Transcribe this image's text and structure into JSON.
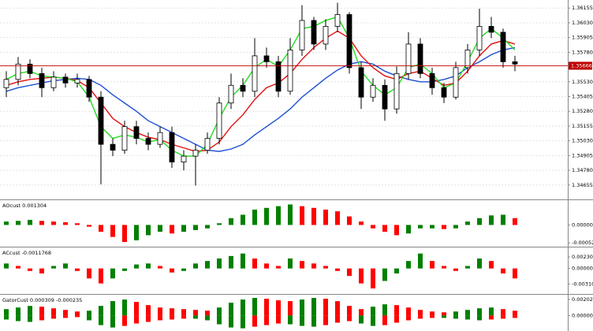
{
  "chart_data": [
    {
      "type": "candlestick",
      "open": [
        1.3548,
        1.3555,
        1.3568,
        1.356,
        1.3548,
        1.3557,
        1.3552,
        1.3555,
        1.354,
        1.35,
        1.3495,
        1.3515,
        1.3505,
        1.35,
        1.351,
        1.3485,
        1.349,
        1.3495,
        1.3505,
        1.3535,
        1.355,
        1.3545,
        1.3575,
        1.357,
        1.3545,
        1.358,
        1.3605,
        1.3585,
        1.36,
        1.361,
        1.3565,
        1.354,
        1.355,
        1.353,
        1.356,
        1.3585,
        1.356,
        1.3548,
        1.354,
        1.3565,
        1.358,
        1.36,
        1.3595,
        1.357
      ],
      "high": [
        1.3562,
        1.3574,
        1.3572,
        1.3565,
        1.3562,
        1.356,
        1.356,
        1.3558,
        1.3545,
        1.3505,
        1.352,
        1.352,
        1.351,
        1.3515,
        1.3515,
        1.3495,
        1.35,
        1.351,
        1.354,
        1.356,
        1.3556,
        1.359,
        1.3582,
        1.3575,
        1.359,
        1.3618,
        1.3608,
        1.3606,
        1.362,
        1.3612,
        1.357,
        1.3556,
        1.3555,
        1.3566,
        1.3595,
        1.359,
        1.3565,
        1.3552,
        1.357,
        1.3585,
        1.3615,
        1.3608,
        1.3598,
        1.3575
      ],
      "low": [
        1.354,
        1.355,
        1.3556,
        1.354,
        1.3545,
        1.3548,
        1.3548,
        1.3536,
        1.3466,
        1.349,
        1.3492,
        1.35,
        1.3495,
        1.3497,
        1.348,
        1.3478,
        1.3465,
        1.3492,
        1.35,
        1.353,
        1.354,
        1.354,
        1.3565,
        1.354,
        1.3542,
        1.3575,
        1.358,
        1.358,
        1.3595,
        1.356,
        1.353,
        1.3536,
        1.352,
        1.3526,
        1.3555,
        1.3556,
        1.3542,
        1.3535,
        1.3538,
        1.356,
        1.3575,
        1.359,
        1.3565,
        1.3562
      ],
      "close": [
        1.3555,
        1.3568,
        1.356,
        1.3548,
        1.3557,
        1.3552,
        1.3555,
        1.354,
        1.35,
        1.3495,
        1.3515,
        1.3505,
        1.35,
        1.351,
        1.3485,
        1.349,
        1.3495,
        1.3505,
        1.3535,
        1.355,
        1.3545,
        1.3575,
        1.357,
        1.3545,
        1.358,
        1.3605,
        1.3585,
        1.36,
        1.361,
        1.3565,
        1.354,
        1.355,
        1.353,
        1.356,
        1.3585,
        1.356,
        1.3548,
        1.354,
        1.3565,
        1.358,
        1.36,
        1.3595,
        1.357,
        1.3568
      ],
      "lines": [
        {
          "color": "#1f4fd1",
          "values": [
            1.3545,
            1.3548,
            1.355,
            1.3552,
            1.3554,
            1.3555,
            1.3556,
            1.3555,
            1.355,
            1.3542,
            1.3535,
            1.3528,
            1.352,
            1.3515,
            1.351,
            1.3505,
            1.35,
            1.3495,
            1.3494,
            1.3496,
            1.35,
            1.3508,
            1.3515,
            1.3522,
            1.353,
            1.354,
            1.3548,
            1.3556,
            1.3563,
            1.3568,
            1.357,
            1.3568,
            1.3562,
            1.3558,
            1.3555,
            1.3553,
            1.3553,
            1.3555,
            1.3558,
            1.3565,
            1.357,
            1.3576,
            1.358,
            1.3582
          ]
        },
        {
          "color": "#e01010",
          "values": [
            1.355,
            1.3553,
            1.3555,
            1.3556,
            1.3557,
            1.3556,
            1.3554,
            1.3548,
            1.3535,
            1.3522,
            1.3515,
            1.351,
            1.3506,
            1.3504,
            1.35,
            1.3497,
            1.3494,
            1.3495,
            1.3502,
            1.3515,
            1.3525,
            1.3538,
            1.3548,
            1.3552,
            1.356,
            1.3572,
            1.3582,
            1.359,
            1.3596,
            1.359,
            1.3575,
            1.3565,
            1.3558,
            1.3555,
            1.356,
            1.3562,
            1.3556,
            1.355,
            1.3552,
            1.3562,
            1.3575,
            1.3585,
            1.3588,
            1.3585
          ]
        },
        {
          "color": "#22dd22",
          "values": [
            1.3555,
            1.356,
            1.3562,
            1.3558,
            1.3557,
            1.3556,
            1.3553,
            1.354,
            1.3515,
            1.3505,
            1.3508,
            1.3506,
            1.3502,
            1.3504,
            1.3495,
            1.349,
            1.349,
            1.35,
            1.3522,
            1.354,
            1.355,
            1.3565,
            1.3572,
            1.3566,
            1.358,
            1.3598,
            1.36,
            1.3605,
            1.3608,
            1.359,
            1.3562,
            1.355,
            1.3542,
            1.3548,
            1.3565,
            1.3568,
            1.356,
            1.3548,
            1.3552,
            1.357,
            1.359,
            1.3598,
            1.359,
            1.358
          ]
        }
      ],
      "current_price": 1.35666,
      "current_price_color": "#c00000",
      "ylim": [
        1.3454,
        1.3621
      ],
      "yticks": [
        1.36155,
        {
          "value": 1.3603,
          "label": "1.36030"
        },
        1.35905,
        {
          "value": 1.3578,
          "label": "1.35780"
        },
        {
          "value": 1.3553,
          "label": "1.35530"
        },
        1.35405,
        {
          "value": 1.3528,
          "label": "1.35280"
        },
        1.35155,
        {
          "value": 1.3503,
          "label": "1.35030"
        },
        1.34905,
        {
          "value": 1.3478,
          "label": "1.34780"
        },
        1.34655
      ],
      "grid": true
    },
    {
      "type": "bar",
      "title": "AOcust 0.001304",
      "values": [
        0.0001,
        0.00012,
        0.00015,
        0.00012,
        0.0001,
        8e-05,
        5e-05,
        -5e-05,
        -0.0002,
        -0.00035,
        -0.0005,
        -0.00045,
        -0.0003,
        -0.0002,
        -0.00025,
        -0.0002,
        -0.00015,
        -0.0001,
        5e-05,
        0.0002,
        0.0003,
        0.00045,
        0.0005,
        0.00055,
        0.0006,
        0.00055,
        0.0005,
        0.00045,
        0.0004,
        0.00025,
        0.0001,
        -0.0001,
        -0.0002,
        -0.0003,
        -0.00025,
        -0.0001,
        -0.0001,
        -0.00012,
        -0.0001,
        0.0001,
        0.0002,
        0.00028,
        0.0003,
        0.0002
      ],
      "colors": {
        "up": "#008000",
        "down": "#ff0000"
      },
      "ylim": [
        -0.00059,
        0.00068
      ],
      "yticks": [
        {
          "value": 0,
          "label": "0.000000"
        },
        -0.000525
      ]
    },
    {
      "type": "bar",
      "title": "ACcust -0.0011768",
      "values": [
        0.001,
        0.0005,
        -0.0005,
        -0.001,
        0.0005,
        0.001,
        -0.0005,
        -0.002,
        -0.003,
        -0.002,
        -0.0005,
        0.0008,
        0.001,
        0.0005,
        -0.0008,
        -0.0005,
        0.001,
        0.0015,
        0.002,
        0.0025,
        0.003,
        0.002,
        0.001,
        0.0005,
        0.002,
        0.0015,
        0.001,
        0.0005,
        -0.0005,
        -0.0015,
        -0.003,
        -0.004,
        -0.0025,
        -0.001,
        0.0015,
        0.003,
        0.0015,
        0.0005,
        -0.0005,
        0.0005,
        0.002,
        0.0015,
        -0.001,
        -0.002
      ],
      "colors": {
        "up": "#008000",
        "down": "#ff0000"
      },
      "ylim": [
        -0.0048,
        0.0039
      ],
      "yticks": [
        0.0023065,
        {
          "value": 0,
          "label": "0.000000"
        },
        {
          "value": -0.003101,
          "label": "-0.0031010"
        }
      ]
    },
    {
      "type": "bar",
      "title": "GatorCust 0.000309 -0.000235",
      "series": [
        {
          "values": [
            0.0008,
            0.001,
            0.0012,
            0.0011,
            0.0009,
            0.0007,
            0.0005,
            0.0006,
            0.0012,
            0.0018,
            0.002,
            0.0017,
            0.0013,
            0.001,
            0.0009,
            0.0008,
            0.0007,
            0.0006,
            0.001,
            0.0016,
            0.002,
            0.0022,
            0.0021,
            0.0019,
            0.0018,
            0.002,
            0.0022,
            0.0021,
            0.0018,
            0.0012,
            0.0008,
            0.0011,
            0.0014,
            0.0013,
            0.001,
            0.0007,
            0.0005,
            0.0004,
            0.0005,
            0.0007,
            0.0009,
            0.001,
            0.0008,
            0.0006
          ]
        },
        {
          "values": [
            -0.0005,
            -0.0007,
            -0.0008,
            -0.0006,
            -0.0004,
            -0.0003,
            -0.0002,
            -0.0006,
            -0.0012,
            -0.0015,
            -0.0013,
            -0.001,
            -0.0008,
            -0.0006,
            -0.0005,
            -0.0004,
            -0.0004,
            -0.0006,
            -0.0011,
            -0.0015,
            -0.0016,
            -0.0014,
            -0.0012,
            -0.001,
            -0.0011,
            -0.0013,
            -0.0014,
            -0.0012,
            -0.0009,
            -0.0007,
            -0.001,
            -0.0013,
            -0.0012,
            -0.0009,
            -0.0006,
            -0.0004,
            -0.0003,
            -0.0003,
            -0.0004,
            -0.0005,
            -0.0006,
            -0.0005,
            -0.0004,
            -0.0003
          ]
        }
      ],
      "colors": {
        "up": "#008000",
        "down": "#ff0000"
      },
      "ylim": [
        -0.00184,
        0.0024
      ],
      "yticks": [
        0.002029,
        {
          "value": 0,
          "label": "0.000000"
        }
      ]
    }
  ]
}
